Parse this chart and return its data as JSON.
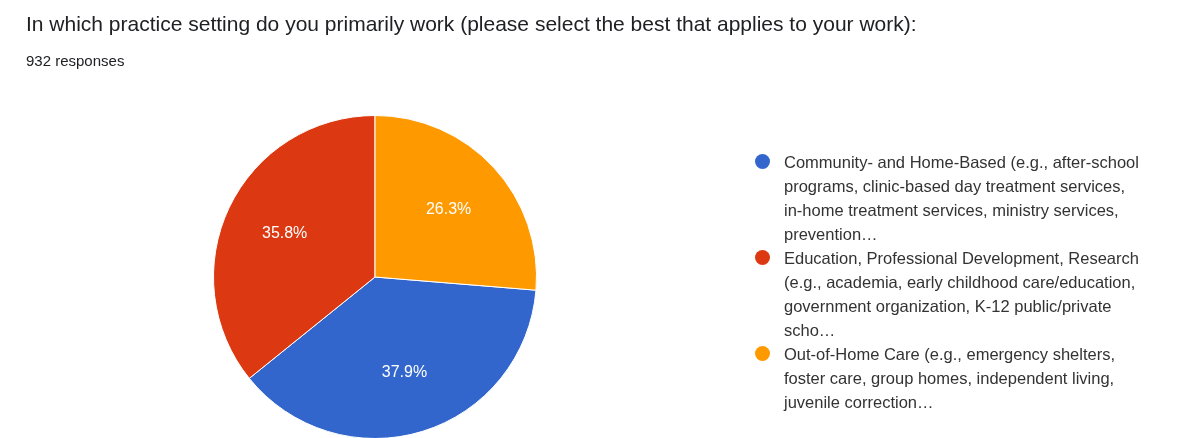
{
  "chart_data": {
    "type": "pie",
    "title": "In which practice setting do you primarily work (please select the best that applies to your work):",
    "subtitle": "932 responses",
    "categories": [
      "Community- and Home-Based (e.g., after-school programs, clinic-based day treatment services, in-home treatment services, ministry services, prevention…",
      "Education, Professional Development, Research (e.g., academia, early childhood care/education, government organization, K-12 public/private scho…",
      "Out-of-Home Care (e.g., emergency shelters, foster care, group homes, independent living, juvenile correction…"
    ],
    "values": [
      37.9,
      35.8,
      26.3
    ],
    "colors": [
      "#3366cc",
      "#dc3912",
      "#ff9900"
    ],
    "value_labels": [
      "37.9%",
      "35.8%",
      "26.3%"
    ],
    "legend": "right"
  }
}
